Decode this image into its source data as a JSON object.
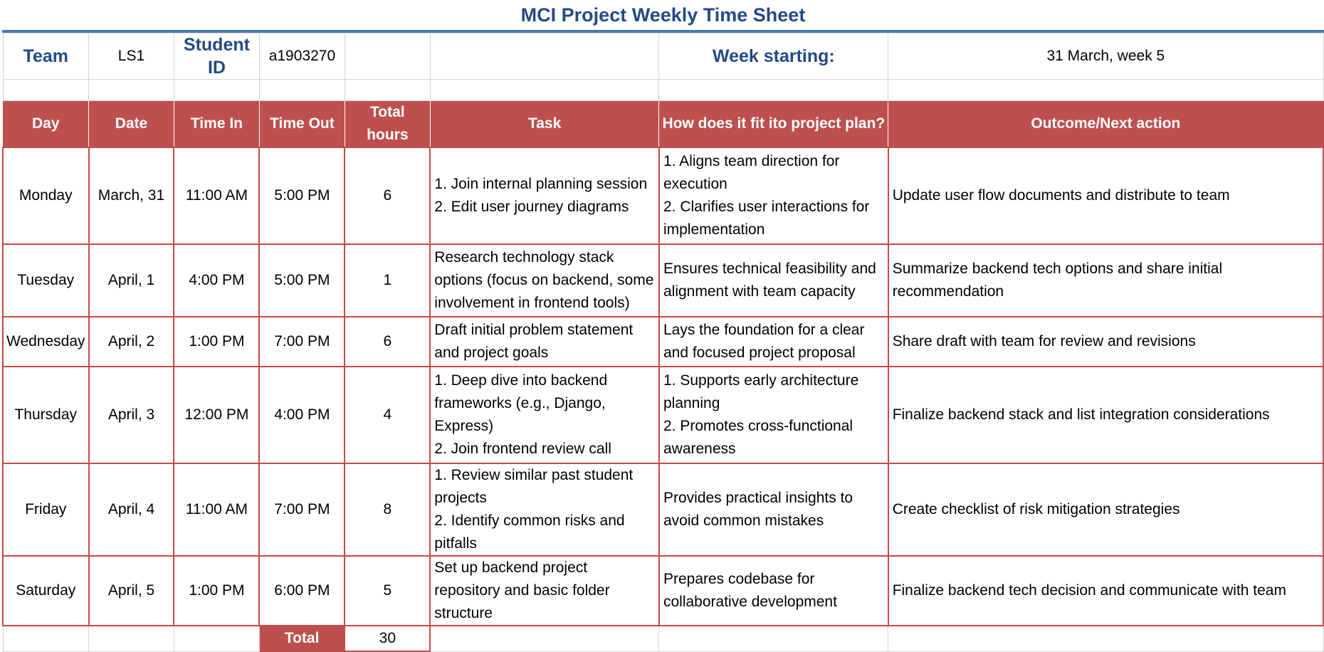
{
  "title": "MCI Project Weekly Time Sheet",
  "info": {
    "team_label": "Team",
    "team_value": "LS1",
    "student_label": "Student ID",
    "student_value": "a1903270",
    "week_label": "Week starting:",
    "week_value": "31 March, week 5"
  },
  "columns": [
    "Day",
    "Date",
    "Time In",
    "Time Out",
    "Total hours",
    "Task",
    "How does it fit ito project plan?",
    "Outcome/Next action"
  ],
  "rows": [
    {
      "day": "Monday",
      "date": "March, 31",
      "time_in": "11:00 AM",
      "time_out": "5:00 PM",
      "hours": "6",
      "task": [
        "1. Join internal planning session",
        "2. Edit user journey diagrams"
      ],
      "fit": [
        "1. Aligns team direction for execution",
        "2. Clarifies user interactions for implementation"
      ],
      "outcome": [
        "Update user flow documents and distribute to team"
      ]
    },
    {
      "day": "Tuesday",
      "date": "April, 1",
      "time_in": "4:00 PM",
      "time_out": "5:00 PM",
      "hours": "1",
      "task": [
        "Research technology stack options (focus on backend, some involvement in frontend tools)"
      ],
      "fit": [
        "Ensures technical feasibility and alignment with team capacity"
      ],
      "outcome": [
        "Summarize backend tech options and share initial recommendation"
      ]
    },
    {
      "day": "Wednesday",
      "date": "April, 2",
      "time_in": "1:00 PM",
      "time_out": "7:00 PM",
      "hours": "6",
      "task": [
        "Draft initial problem statement and project goals"
      ],
      "fit": [
        "Lays the foundation for a clear and focused project proposal"
      ],
      "outcome": [
        "Share draft with team for review and revisions"
      ]
    },
    {
      "day": "Thursday",
      "date": "April, 3",
      "time_in": "12:00 PM",
      "time_out": "4:00 PM",
      "hours": "4",
      "task": [
        "1. Deep dive into backend frameworks (e.g., Django, Express)",
        "2. Join frontend review call"
      ],
      "fit": [
        "1. Supports early architecture planning",
        "2. Promotes cross-functional awareness"
      ],
      "outcome": [
        "Finalize backend stack and list integration considerations"
      ]
    },
    {
      "day": "Friday",
      "date": "April, 4",
      "time_in": "11:00 AM",
      "time_out": "7:00 PM",
      "hours": "8",
      "task": [
        "1. Review similar past student projects",
        "2. Identify common risks and pitfalls"
      ],
      "fit": [
        "Provides practical insights to avoid common mistakes"
      ],
      "outcome": [
        "Create checklist of risk mitigation strategies"
      ]
    },
    {
      "day": "Saturday",
      "date": "April, 5",
      "time_in": "1:00 PM",
      "time_out": "6:00 PM",
      "hours": "5",
      "task": [
        "Set up backend project repository and basic folder structure"
      ],
      "fit": [
        "Prepares codebase for collaborative development"
      ],
      "outcome": [
        "Finalize backend tech decision and communicate with team"
      ]
    }
  ],
  "total": {
    "label": "Total",
    "value": "30"
  },
  "colors": {
    "header_red": "#bd504e",
    "title_blue": "#244a86",
    "rule_blue": "#4a78b5"
  }
}
